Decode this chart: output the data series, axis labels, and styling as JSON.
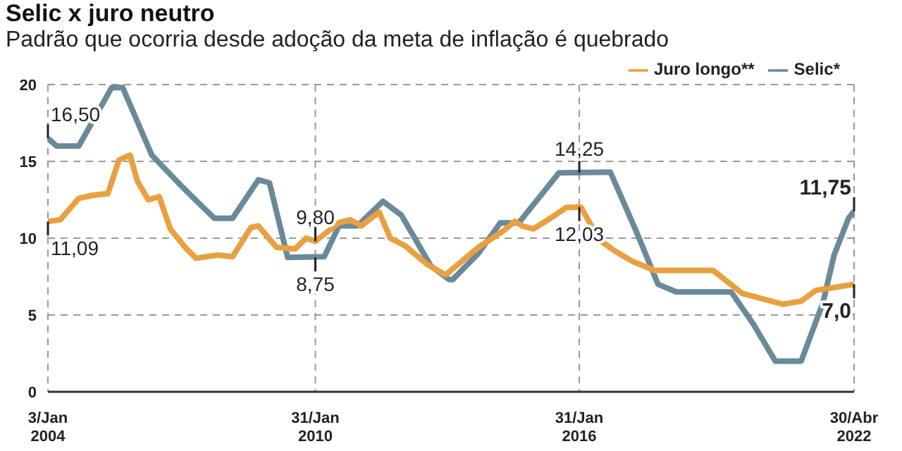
{
  "chart_data": {
    "type": "line",
    "title": "Selic x juro neutro",
    "subtitle": "Padrão que ocorria desde adoção da meta de inflação é quebrado",
    "series": [
      {
        "name": "Selic*",
        "color": "#6a8a99",
        "x": [
          "2004-01-03",
          "2004-03",
          "2004-09",
          "2005-06",
          "2005-09",
          "2006-05",
          "2007-01",
          "2007-04",
          "2007-10",
          "2008-03",
          "2008-10",
          "2009-01",
          "2009-06",
          "2010-04",
          "2010-08",
          "2011-01",
          "2011-08",
          "2012-01",
          "2012-09",
          "2013-02",
          "2013-03",
          "2013-10",
          "2014-04",
          "2014-09",
          "2015-08",
          "2016-10",
          "2017-05",
          "2017-11",
          "2018-04",
          "2019-07",
          "2020-01",
          "2020-07",
          "2021-02",
          "2021-08",
          "2021-11",
          "2022-03",
          "2022-04-30"
        ],
        "values": [
          16.5,
          16.0,
          16.0,
          19.8,
          19.8,
          15.4,
          13.4,
          12.7,
          11.3,
          11.3,
          13.8,
          13.6,
          8.75,
          8.8,
          10.8,
          10.8,
          12.4,
          11.5,
          8.2,
          7.3,
          7.3,
          9.0,
          11.0,
          11.0,
          14.25,
          14.3,
          10.5,
          7.0,
          6.5,
          6.5,
          4.4,
          2.0,
          2.0,
          5.8,
          8.9,
          11.3,
          11.75
        ]
      },
      {
        "name": "Juro longo**",
        "color": "#e8a040",
        "x": [
          "2004-01-03",
          "2004-04",
          "2004-09",
          "2005-01",
          "2005-05",
          "2005-08",
          "2005-11",
          "2006-01",
          "2006-04",
          "2006-07",
          "2006-10",
          "2007-02",
          "2007-05",
          "2007-11",
          "2008-03",
          "2008-08",
          "2008-10",
          "2009-03",
          "2009-08",
          "2009-11",
          "2010-01-31",
          "2010-08",
          "2010-11",
          "2011-02",
          "2011-07",
          "2011-10",
          "2012-02",
          "2012-08",
          "2013-01",
          "2013-04",
          "2013-10",
          "2014-05",
          "2014-08",
          "2014-10",
          "2015-01",
          "2015-07",
          "2015-10",
          "2016-01-31",
          "2016-02",
          "2016-07",
          "2016-11",
          "2017-04",
          "2017-10",
          "2019-02",
          "2019-10",
          "2020-09",
          "2021-02",
          "2021-06",
          "2022-04-30"
        ],
        "values": [
          11.09,
          11.2,
          12.6,
          12.8,
          12.9,
          15.1,
          15.4,
          13.7,
          12.5,
          12.7,
          10.6,
          9.4,
          8.7,
          8.9,
          8.8,
          10.7,
          10.8,
          9.4,
          9.3,
          10.0,
          9.8,
          11.0,
          11.2,
          10.8,
          11.7,
          10.0,
          9.5,
          8.3,
          7.6,
          8.2,
          9.4,
          10.5,
          11.1,
          10.8,
          10.6,
          11.5,
          12.0,
          12.03,
          12.0,
          9.9,
          9.2,
          8.5,
          7.9,
          7.9,
          6.4,
          5.7,
          5.9,
          6.6,
          7.0
        ]
      }
    ],
    "xlim": [
      "2004-01-03",
      "2022-04-30"
    ],
    "xticks": [
      {
        "value": "2004-01-03",
        "label": "3/Jan 2004"
      },
      {
        "value": "2010-01-31",
        "label": "31/Jan 2010"
      },
      {
        "value": "2016-01-31",
        "label": "31/Jan 2016"
      },
      {
        "value": "2022-04-30",
        "label": "30/Abr 2022"
      }
    ],
    "ylim": [
      0,
      20
    ],
    "yticks": [
      0,
      5,
      10,
      15,
      20
    ],
    "grid": true,
    "legend": "top right",
    "marker": "none",
    "line_style": "solid",
    "annotations": [
      {
        "text": "16,50",
        "x": "2004-01-03",
        "y": 16.5
      },
      {
        "text": "11,09",
        "x": "2004-01-03",
        "y": 11.09
      },
      {
        "text": "9,80",
        "x": "2010-01-31",
        "y": 9.8
      },
      {
        "text": "8,75",
        "x": "2010-01-31",
        "y": 8.75
      },
      {
        "text": "14,25",
        "x": "2016-01-31",
        "y": 14.25
      },
      {
        "text": "12,03",
        "x": "2016-01-31",
        "y": 12.03
      },
      {
        "text": "11,75",
        "x": "2022-04-30",
        "y": 11.75
      },
      {
        "text": "7,0",
        "x": "2022-04-30",
        "y": 7.0
      }
    ]
  }
}
